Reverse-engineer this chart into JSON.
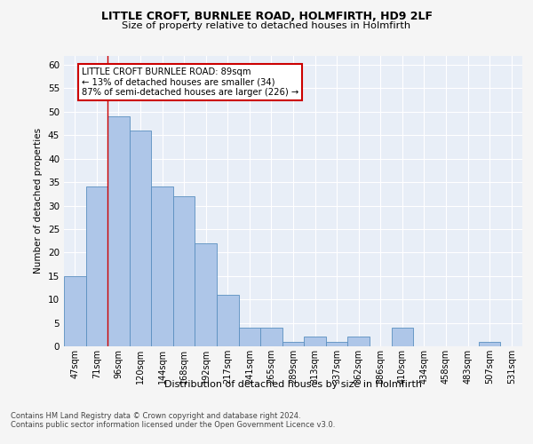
{
  "title1": "LITTLE CROFT, BURNLEE ROAD, HOLMFIRTH, HD9 2LF",
  "title2": "Size of property relative to detached houses in Holmfirth",
  "xlabel": "Distribution of detached houses by size in Holmfirth",
  "ylabel": "Number of detached properties",
  "categories": [
    "47sqm",
    "71sqm",
    "96sqm",
    "120sqm",
    "144sqm",
    "168sqm",
    "192sqm",
    "217sqm",
    "241sqm",
    "265sqm",
    "289sqm",
    "313sqm",
    "337sqm",
    "362sqm",
    "386sqm",
    "410sqm",
    "434sqm",
    "458sqm",
    "483sqm",
    "507sqm",
    "531sqm"
  ],
  "values": [
    15,
    34,
    49,
    46,
    34,
    32,
    22,
    11,
    4,
    4,
    1,
    2,
    1,
    2,
    0,
    4,
    0,
    0,
    0,
    1,
    0
  ],
  "bar_color": "#aec6e8",
  "bar_edge_color": "#5a8fc0",
  "ylim": [
    0,
    62
  ],
  "yticks": [
    0,
    5,
    10,
    15,
    20,
    25,
    30,
    35,
    40,
    45,
    50,
    55,
    60
  ],
  "property_line_x": 1.5,
  "annotation_text": "LITTLE CROFT BURNLEE ROAD: 89sqm\n← 13% of detached houses are smaller (34)\n87% of semi-detached houses are larger (226) →",
  "annotation_box_color": "#ffffff",
  "annotation_border_color": "#cc0000",
  "red_line_color": "#cc0000",
  "footer1": "Contains HM Land Registry data © Crown copyright and database right 2024.",
  "footer2": "Contains public sector information licensed under the Open Government Licence v3.0.",
  "bg_color": "#f5f5f5",
  "plot_bg_color": "#e8eef7"
}
